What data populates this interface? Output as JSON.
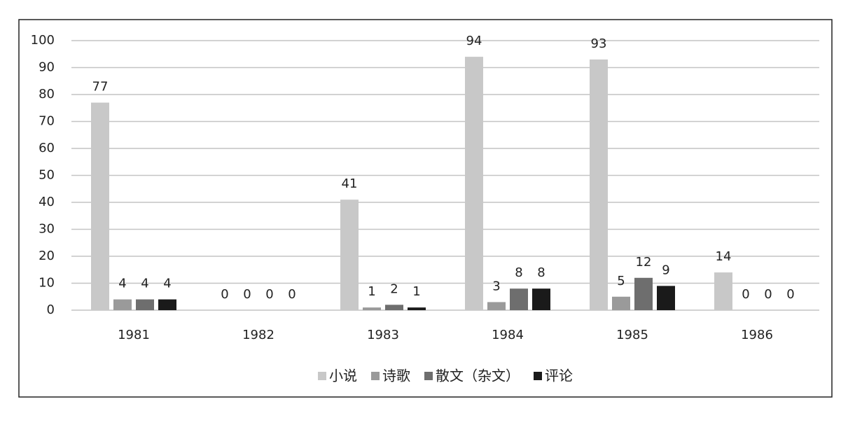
{
  "chart_data": {
    "type": "bar",
    "categories": [
      "1981",
      "1982",
      "1983",
      "1984",
      "1985",
      "1986"
    ],
    "series": [
      {
        "name": "小说",
        "color": "#c8c8c8",
        "values": [
          77,
          0,
          41,
          94,
          93,
          14
        ]
      },
      {
        "name": "诗歌",
        "color": "#9a9a9a",
        "values": [
          4,
          0,
          1,
          3,
          5,
          0
        ]
      },
      {
        "name": "散文（杂文）",
        "color": "#6e6e6e",
        "values": [
          4,
          0,
          2,
          8,
          12,
          0
        ]
      },
      {
        "name": "评论",
        "color": "#1a1a1a",
        "values": [
          4,
          0,
          1,
          8,
          9,
          0
        ]
      }
    ],
    "ylim": [
      0,
      100
    ],
    "yticks": [
      0,
      10,
      20,
      30,
      40,
      50,
      60,
      70,
      80,
      90,
      100
    ],
    "grid": true,
    "legend": "bottom"
  }
}
